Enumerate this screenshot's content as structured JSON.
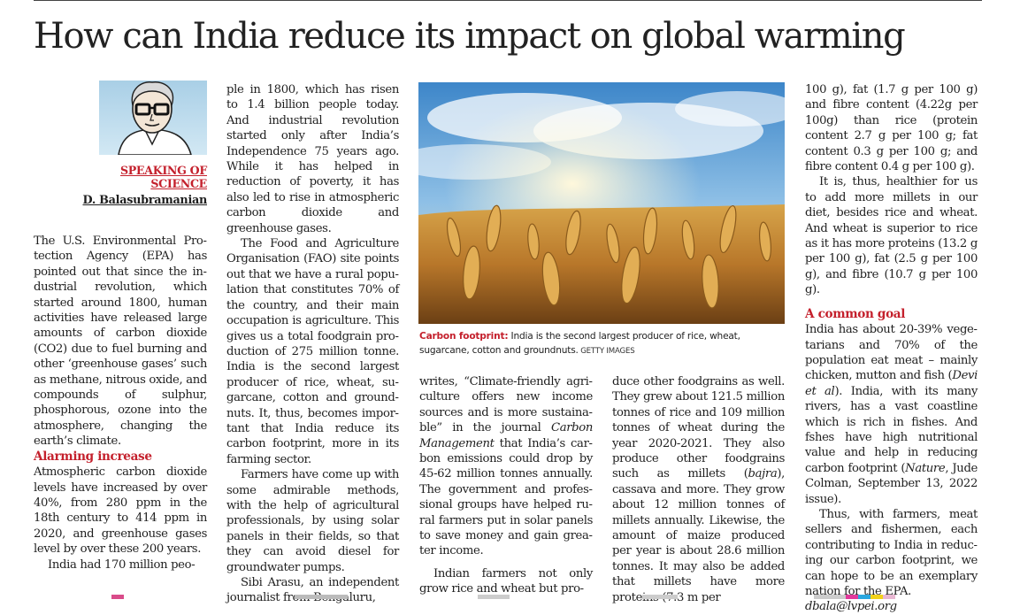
{
  "headline": "How can India reduce its impact on global warming",
  "column": {
    "label_line1": "SPEAKING OF",
    "label_line2": "SCIENCE",
    "author": "D. Balasubramanian"
  },
  "col1": {
    "p1": "The U.S. Environmental Pro­tection Agency (EPA) has pointed out that since the in­dustrial revolution, which started around 1800, human activities have released large amounts of carbon dioxide (CO2) due to fuel burning and other ‘greenhouse gases’ such as methane, nitrous oxide, and compounds of sulphur, phosphorous, ozone into the atmosphere, changing the earth’s climate.",
    "subhead": "Alarming increase",
    "p2": "Atmospheric carbon dioxide levels have increased by over 40%, from 280 ppm in the 18th century to 414 ppm in 2020, and greenhouse gases level by over these 200 years.",
    "p3": "India had 170 million peo-"
  },
  "col2": {
    "p1": "ple in 1800, which has risen to 1.4 billion people today. And industrial revolution started only after India’s Indepen­dence 75 years ago. While it has helped in reduction of po­verty, it has also led to rise in atmospheric carbon dioxide and greenhouse gases.",
    "p2": "The Food and Agriculture Organisation (FAO) site points out that we have a rural popu­lation that constitutes 70% of the country, and their main occupation is agriculture. This gives us a total foodgrain pro­duction of 275 million tonne. India is the second largest producer of rice, wheat, su­garcane, cotton and ground­nuts. It, thus, becomes impor­tant that India reduce its carbon footprint, more in its farming sector.",
    "p3": "Farmers have come up with some admirable meth­ods, with the help of agricul­tural professionals, by using solar panels in their fields, so that they can avoid diesel for groundwater pumps.",
    "p4": "Sibi Arasu, an independent journalist from Bengaluru,"
  },
  "photo": {
    "caption_lead": "Carbon footprint:",
    "caption_text": " India is the second largest producer of rice, wheat, sugarcane, cotton and groundnuts.",
    "credit": " GETTY IMAGES"
  },
  "col3": {
    "p1a": "writes, “Climate-friendly agri­culture offers new income sources and is more sustaina­ble” in the journal ",
    "p1_journal": "Carbon Management",
    "p1b": " that India’s car­bon emissions could drop by 45-62 million tonnes annually. The government and profes­sional groups have helped ru­ral farmers put in solar panels to save money and gain grea­ter income.",
    "p2": "Indian farmers not only grow rice and wheat but pro-"
  },
  "col4": {
    "p1a": "duce other foodgrains as well. They grew about 121.5 million tonnes of rice and 109 million tonnes of wheat during the year 2020-2021. They also produce other foodgrains such as millets (",
    "p1_bajra": "bajra",
    "p1b": "), cassava and more. They grow about 12 million tonnes of millets an­nually. Likewise, the amount of maize produced per year is about 28.6 million tonnes. It may also be added that millets have more proteins (7.3 m per"
  },
  "col5": {
    "p1": "100 g), fat (1.7 g per 100 g) and fibre content (4.22g per 100g) than rice (protein content 2.7 g per 100 g; fat content 0.3 g per 100 g; and fibre content 0.4 g per 100 g).",
    "p2": "It is, thus, healthier for us to add more millets in our diet, besides rice and wheat. And wheat is superior to rice as it has more proteins (13.2 g per 100 g), fat (2.5 g per 100 g), and fibre (10.7 g per 100 g).",
    "subhead": "A common goal",
    "p3a": "India has about 20-39% vege­tarians and 70% of the popula­tion eat meat – mainly chick­en, mutton and fish (",
    "p3_cite": "Devi et al",
    "p3b": "). India, with its many rivers, has a vast coastline which is rich in fishes. And fshes have high nutritional value and help in reducing carbon foot­print (",
    "p3_nature": "Nature",
    "p3c": ", Jude Colman, September 13, 2022 issue).",
    "p4": "Thus, with farmers, meat sellers and fishermen, each contributing to India in reduc­ing our carbon footprint, we can hope to be an exemplary nation for the EPA.",
    "signoff": "dbala@lvpei.org"
  }
}
